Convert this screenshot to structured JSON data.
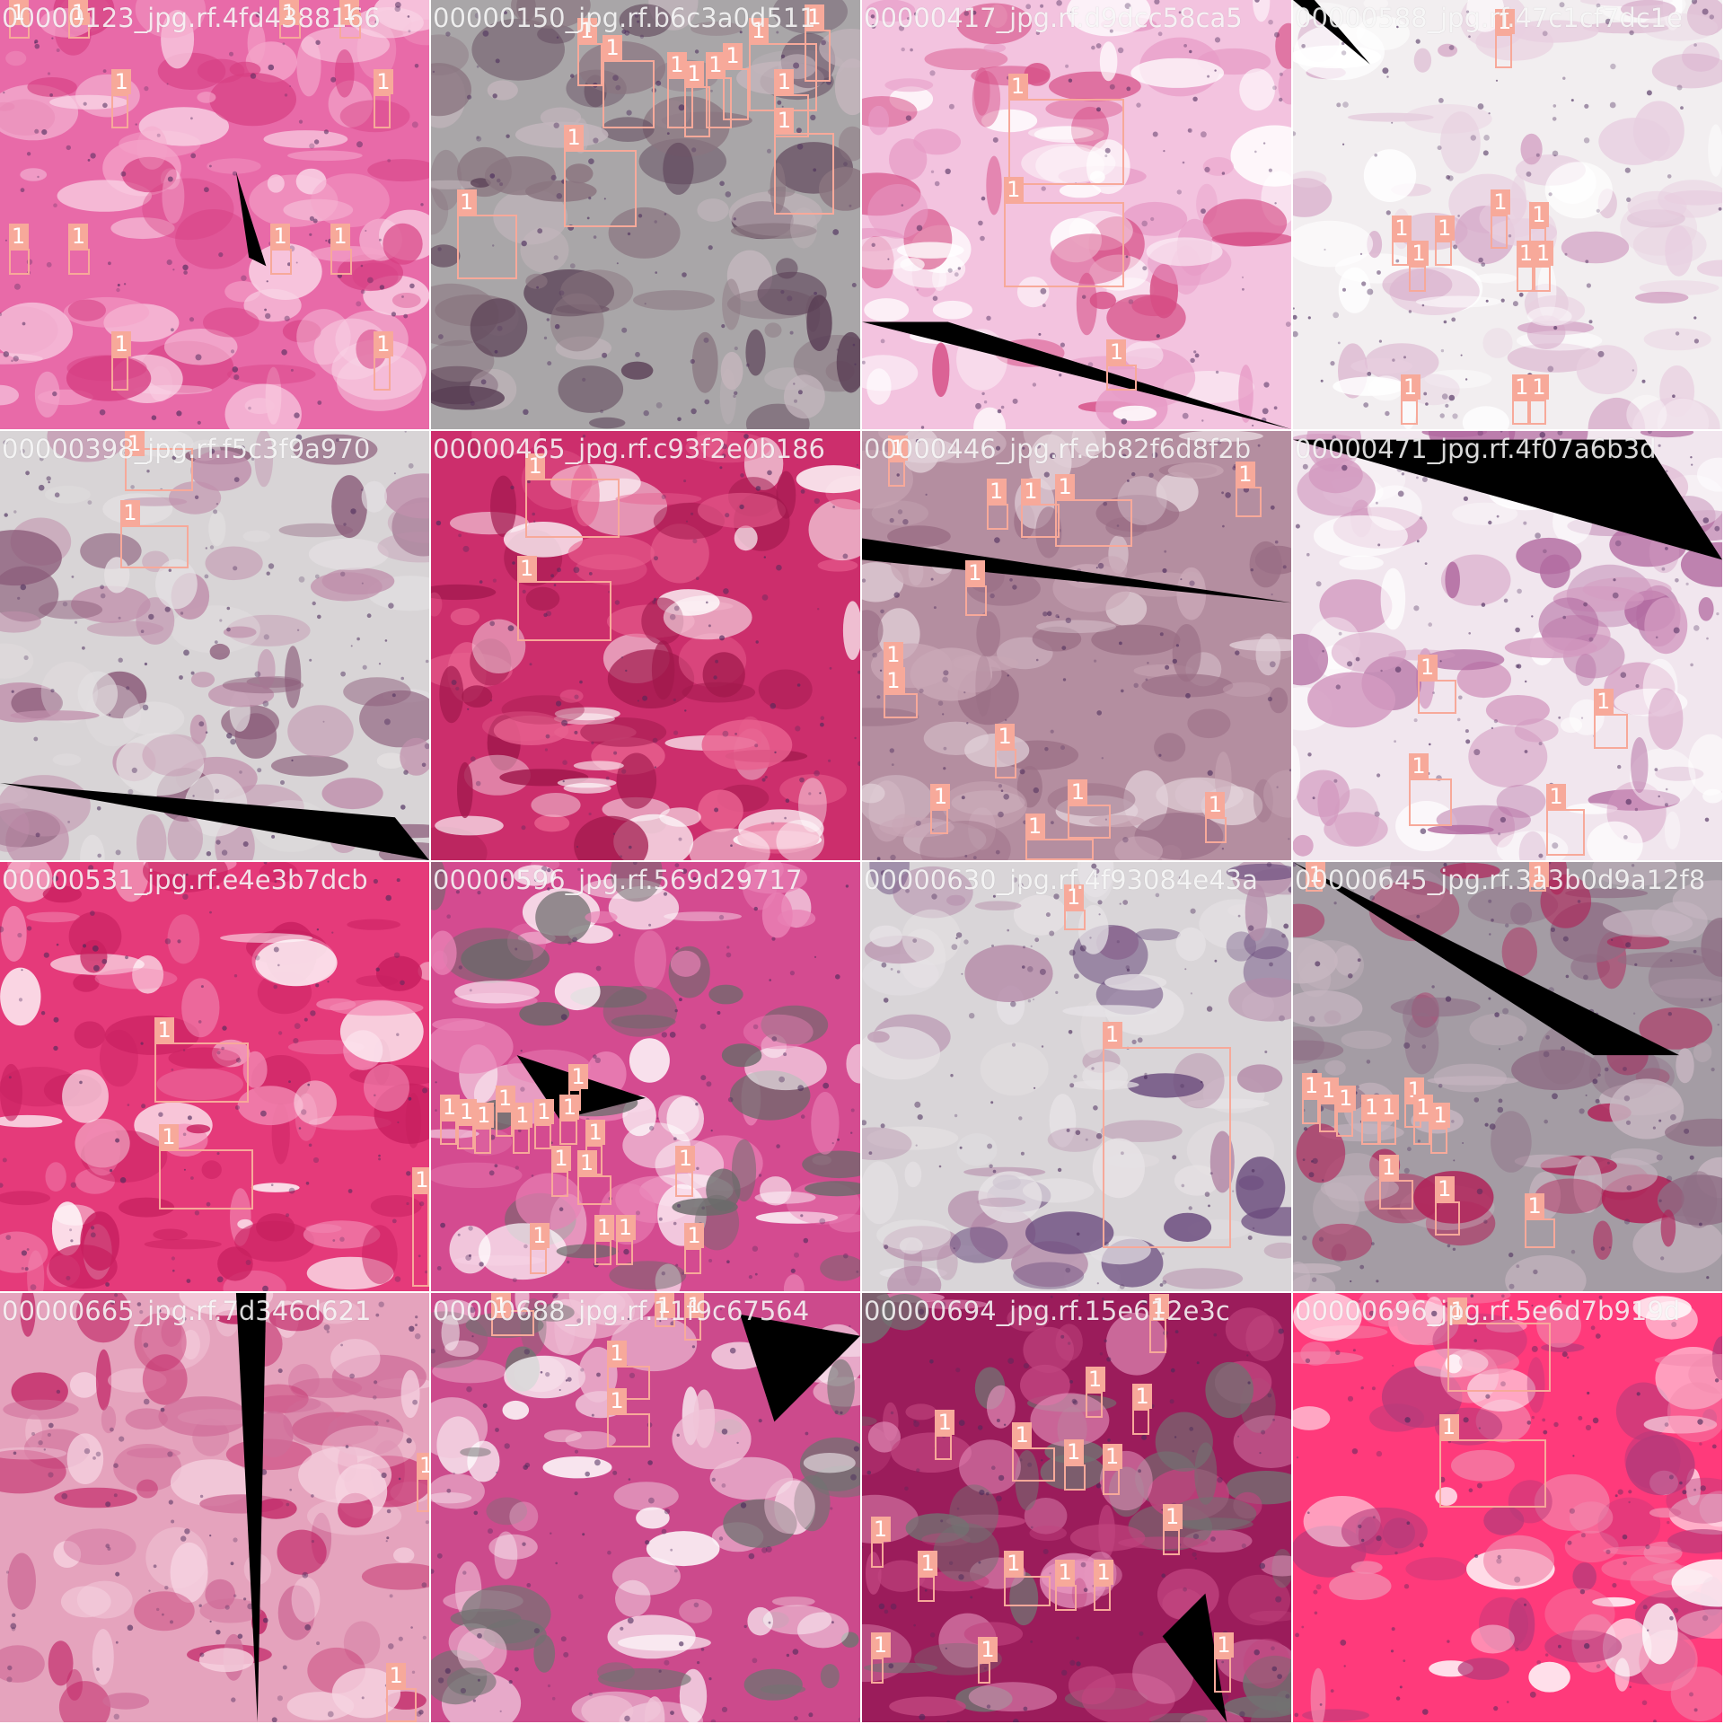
{
  "image": {
    "description_label": "Mosaic of 16 H&E-stained lung histology tiles with object detection boxes",
    "colors": {
      "box": "#f7a99a",
      "label_text": "#ffffff"
    }
  },
  "tiles": [
    {
      "filename": "00000123_jpg.rf.4fd4388166",
      "bg": [
        "#e86aa8",
        "#f4a3c9",
        "#d63e82",
        "#f9d4e6"
      ],
      "black": [
        [
          0.55,
          0.4,
          0.62,
          0.62,
          0.58,
          0.6
        ]
      ],
      "boxes": [
        [
          0.02,
          0.03,
          0.05,
          0.06
        ],
        [
          0.16,
          0.03,
          0.05,
          0.06
        ],
        [
          0.65,
          0.03,
          0.05,
          0.06
        ],
        [
          0.79,
          0.03,
          0.05,
          0.06
        ],
        [
          0.26,
          0.22,
          0.04,
          0.08
        ],
        [
          0.87,
          0.22,
          0.04,
          0.08
        ],
        [
          0.02,
          0.58,
          0.05,
          0.06
        ],
        [
          0.16,
          0.58,
          0.05,
          0.06
        ],
        [
          0.63,
          0.58,
          0.05,
          0.06
        ],
        [
          0.77,
          0.58,
          0.05,
          0.06
        ],
        [
          0.26,
          0.83,
          0.04,
          0.08
        ],
        [
          0.87,
          0.83,
          0.04,
          0.08
        ]
      ]
    },
    {
      "filename": "00000150_jpg.rf.b6c3a0d511",
      "bg": [
        "#a9a6a8",
        "#8a7580",
        "#c4b6bd",
        "#5a3f55"
      ],
      "black": [],
      "boxes": [
        [
          0.34,
          0.1,
          0.06,
          0.1
        ],
        [
          0.4,
          0.14,
          0.12,
          0.16
        ],
        [
          0.55,
          0.18,
          0.06,
          0.12
        ],
        [
          0.59,
          0.2,
          0.06,
          0.12
        ],
        [
          0.64,
          0.18,
          0.06,
          0.12
        ],
        [
          0.68,
          0.16,
          0.06,
          0.12
        ],
        [
          0.74,
          0.1,
          0.16,
          0.16
        ],
        [
          0.87,
          0.07,
          0.06,
          0.12
        ],
        [
          0.8,
          0.22,
          0.08,
          0.1
        ],
        [
          0.31,
          0.35,
          0.17,
          0.18
        ],
        [
          0.8,
          0.31,
          0.14,
          0.19
        ],
        [
          0.06,
          0.5,
          0.14,
          0.15
        ]
      ]
    },
    {
      "filename": "00000417_jpg.rf.d9dcc58ca5",
      "bg": [
        "#f3c3df",
        "#e79bc6",
        "#ffffff",
        "#d64d85"
      ],
      "black": [
        [
          0.0,
          0.75,
          1.0,
          1.0,
          0.2,
          0.75
        ]
      ],
      "boxes": [
        [
          0.34,
          0.23,
          0.27,
          0.2
        ],
        [
          0.33,
          0.47,
          0.28,
          0.2
        ],
        [
          0.57,
          0.85,
          0.07,
          0.06
        ]
      ]
    },
    {
      "filename": "00000588_jpg.rf.47c1cf7dc1e",
      "bg": [
        "#f2eef0",
        "#e8cfe0",
        "#d4a4c5",
        "#ffffff"
      ],
      "black": [
        [
          0.0,
          0.0,
          0.18,
          0.15,
          0.05,
          0.0
        ]
      ],
      "boxes": [
        [
          0.47,
          0.08,
          0.04,
          0.08
        ],
        [
          0.23,
          0.56,
          0.04,
          0.06
        ],
        [
          0.27,
          0.62,
          0.04,
          0.06
        ],
        [
          0.33,
          0.56,
          0.04,
          0.06
        ],
        [
          0.46,
          0.5,
          0.04,
          0.08
        ],
        [
          0.55,
          0.53,
          0.04,
          0.06
        ],
        [
          0.52,
          0.62,
          0.04,
          0.06
        ],
        [
          0.56,
          0.62,
          0.04,
          0.06
        ],
        [
          0.25,
          0.93,
          0.04,
          0.06
        ],
        [
          0.51,
          0.93,
          0.04,
          0.06
        ],
        [
          0.55,
          0.93,
          0.04,
          0.06
        ]
      ]
    },
    {
      "filename": "00000398_jpg.rf.f5c3f9a970",
      "bg": [
        "#d8d4d6",
        "#c090ac",
        "#e4e0e2",
        "#8a5a78"
      ],
      "black": [
        [
          0.0,
          0.82,
          0.92,
          0.9,
          1.0,
          1.0
        ]
      ],
      "boxes": [
        [
          0.29,
          0.04,
          0.16,
          0.1
        ],
        [
          0.28,
          0.22,
          0.16,
          0.1
        ]
      ]
    },
    {
      "filename": "00000465_jpg.rf.c93f2e0b186",
      "bg": [
        "#cc2e6c",
        "#e8608f",
        "#ffffff",
        "#a0184c"
      ],
      "black": [],
      "boxes": [
        [
          0.22,
          0.11,
          0.22,
          0.14
        ],
        [
          0.2,
          0.35,
          0.22,
          0.14
        ]
      ]
    },
    {
      "filename": "00000446_jpg.rf.eb82f6d8f2b",
      "bg": [
        "#b48ea0",
        "#c9a7b6",
        "#9a6e85",
        "#e3d3da"
      ],
      "black": [
        [
          0.0,
          0.25,
          1.0,
          0.4,
          0.0,
          0.3
        ]
      ],
      "boxes": [
        [
          0.06,
          0.07,
          0.04,
          0.06
        ],
        [
          0.29,
          0.17,
          0.05,
          0.06
        ],
        [
          0.37,
          0.17,
          0.09,
          0.08
        ],
        [
          0.45,
          0.16,
          0.18,
          0.11
        ],
        [
          0.87,
          0.13,
          0.06,
          0.07
        ],
        [
          0.24,
          0.36,
          0.05,
          0.07
        ],
        [
          0.05,
          0.55,
          0.05,
          0.06
        ],
        [
          0.05,
          0.61,
          0.08,
          0.06
        ],
        [
          0.31,
          0.74,
          0.05,
          0.07
        ],
        [
          0.16,
          0.88,
          0.04,
          0.06
        ],
        [
          0.48,
          0.87,
          0.1,
          0.08
        ],
        [
          0.38,
          0.95,
          0.16,
          0.05
        ],
        [
          0.8,
          0.9,
          0.05,
          0.06
        ]
      ]
    },
    {
      "filename": "00000471_jpg.rf.4f07a6b3d",
      "bg": [
        "#f1e6ee",
        "#d39ac0",
        "#ffffff",
        "#b26aa0"
      ],
      "black": [
        [
          0.0,
          0.02,
          1.0,
          0.3,
          0.82,
          0.02
        ]
      ],
      "boxes": [
        [
          0.29,
          0.58,
          0.09,
          0.08
        ],
        [
          0.7,
          0.66,
          0.08,
          0.08
        ],
        [
          0.27,
          0.81,
          0.1,
          0.11
        ],
        [
          0.59,
          0.88,
          0.09,
          0.11
        ]
      ]
    },
    {
      "filename": "00000531_jpg.rf.e4e3b7dcb",
      "bg": [
        "#e53a7a",
        "#ffffff",
        "#f28ab4",
        "#c71f5f"
      ],
      "black": [],
      "boxes": [
        [
          0.36,
          0.42,
          0.22,
          0.14
        ],
        [
          0.37,
          0.67,
          0.22,
          0.14
        ],
        [
          0.96,
          0.77,
          0.04,
          0.22
        ]
      ]
    },
    {
      "filename": "00000596_jpg.rf.569d29717",
      "bg": [
        "#d44b90",
        "#ffffff",
        "#e981b5",
        "#6a6a6a"
      ],
      "black": [
        [
          0.2,
          0.45,
          0.5,
          0.55,
          0.3,
          0.6
        ]
      ],
      "boxes": [
        [
          0.32,
          0.53,
          0.03,
          0.05
        ],
        [
          0.02,
          0.6,
          0.04,
          0.06
        ],
        [
          0.06,
          0.61,
          0.04,
          0.06
        ],
        [
          0.1,
          0.62,
          0.04,
          0.06
        ],
        [
          0.15,
          0.58,
          0.04,
          0.06
        ],
        [
          0.19,
          0.62,
          0.04,
          0.06
        ],
        [
          0.24,
          0.61,
          0.04,
          0.06
        ],
        [
          0.3,
          0.6,
          0.04,
          0.06
        ],
        [
          0.36,
          0.66,
          0.04,
          0.07
        ],
        [
          0.28,
          0.72,
          0.04,
          0.06
        ],
        [
          0.34,
          0.73,
          0.08,
          0.07
        ],
        [
          0.57,
          0.72,
          0.04,
          0.06
        ],
        [
          0.23,
          0.9,
          0.04,
          0.06
        ],
        [
          0.38,
          0.88,
          0.04,
          0.06
        ],
        [
          0.43,
          0.88,
          0.04,
          0.06
        ],
        [
          0.59,
          0.9,
          0.04,
          0.06
        ]
      ]
    },
    {
      "filename": "00000630_jpg.rf.4f93084e43a",
      "bg": [
        "#d9d5d8",
        "#b48aa8",
        "#e6e2e5",
        "#6a4b7d"
      ],
      "black": [],
      "boxes": [
        [
          0.47,
          0.11,
          0.05,
          0.05
        ],
        [
          0.56,
          0.43,
          0.3,
          0.47
        ]
      ]
    },
    {
      "filename": "00000645_jpg.rf.3a3b0d9a12f8",
      "bg": [
        "#a49ca4",
        "#c7b6c1",
        "#8e6d84",
        "#b01d55"
      ],
      "black": [
        [
          0.0,
          0.0,
          0.7,
          0.45,
          0.9,
          0.45
        ]
      ],
      "boxes": [
        [
          0.03,
          0.01,
          0.04,
          0.06
        ],
        [
          0.55,
          0.01,
          0.04,
          0.06
        ],
        [
          0.02,
          0.55,
          0.04,
          0.06
        ],
        [
          0.06,
          0.56,
          0.04,
          0.07
        ],
        [
          0.1,
          0.58,
          0.04,
          0.06
        ],
        [
          0.16,
          0.6,
          0.04,
          0.06
        ],
        [
          0.2,
          0.6,
          0.04,
          0.06
        ],
        [
          0.26,
          0.56,
          0.04,
          0.06
        ],
        [
          0.28,
          0.6,
          0.04,
          0.06
        ],
        [
          0.32,
          0.62,
          0.04,
          0.06
        ],
        [
          0.2,
          0.74,
          0.08,
          0.07
        ],
        [
          0.33,
          0.79,
          0.06,
          0.08
        ],
        [
          0.54,
          0.83,
          0.07,
          0.07
        ]
      ]
    },
    {
      "filename": "00000665_jpg.rf.7d346d621",
      "bg": [
        "#e5a3bd",
        "#cf6c98",
        "#f6d3e1",
        "#c02062"
      ],
      "black": [
        [
          0.55,
          0.0,
          0.62,
          0.0,
          0.6,
          1.0
        ]
      ],
      "boxes": [
        [
          0.97,
          0.43,
          0.03,
          0.08
        ],
        [
          0.9,
          0.92,
          0.07,
          0.08
        ]
      ]
    },
    {
      "filename": "00000688_jpg.rf.11f9c67564",
      "bg": [
        "#cc4a8c",
        "#727272",
        "#f0c4d8",
        "#ffffff"
      ],
      "black": [
        [
          0.72,
          0.05,
          1.0,
          0.1,
          0.8,
          0.3
        ]
      ],
      "boxes": [
        [
          0.14,
          0.04,
          0.1,
          0.06
        ],
        [
          0.52,
          0.02,
          0.05,
          0.06
        ],
        [
          0.59,
          0.05,
          0.04,
          0.06
        ],
        [
          0.41,
          0.17,
          0.1,
          0.08
        ],
        [
          0.41,
          0.28,
          0.1,
          0.08
        ]
      ]
    },
    {
      "filename": "00000694_jpg.rf.15e612e3c",
      "bg": [
        "#9b1c5b",
        "#c1457f",
        "#727272",
        "#e695be"
      ],
      "black": [
        [
          0.7,
          0.8,
          0.85,
          1.0,
          0.8,
          0.7
        ]
      ],
      "boxes": [
        [
          0.67,
          0.06,
          0.04,
          0.08
        ],
        [
          0.52,
          0.23,
          0.04,
          0.06
        ],
        [
          0.63,
          0.27,
          0.04,
          0.06
        ],
        [
          0.17,
          0.33,
          0.04,
          0.06
        ],
        [
          0.35,
          0.36,
          0.1,
          0.08
        ],
        [
          0.47,
          0.4,
          0.05,
          0.06
        ],
        [
          0.56,
          0.41,
          0.04,
          0.06
        ],
        [
          0.02,
          0.58,
          0.03,
          0.06
        ],
        [
          0.13,
          0.66,
          0.04,
          0.06
        ],
        [
          0.33,
          0.66,
          0.11,
          0.07
        ],
        [
          0.45,
          0.68,
          0.05,
          0.06
        ],
        [
          0.54,
          0.68,
          0.04,
          0.06
        ],
        [
          0.7,
          0.55,
          0.04,
          0.06
        ],
        [
          0.02,
          0.85,
          0.03,
          0.06
        ],
        [
          0.27,
          0.86,
          0.03,
          0.05
        ],
        [
          0.82,
          0.85,
          0.04,
          0.08
        ]
      ]
    },
    {
      "filename": "00000696_jpg.rf.5e6d7b919d",
      "bg": [
        "#ff3a7b",
        "#ffffff",
        "#f28aae",
        "#b63a7a"
      ],
      "black": [],
      "boxes": [
        [
          0.36,
          0.07,
          0.24,
          0.16
        ],
        [
          0.34,
          0.34,
          0.25,
          0.16
        ]
      ]
    }
  ]
}
